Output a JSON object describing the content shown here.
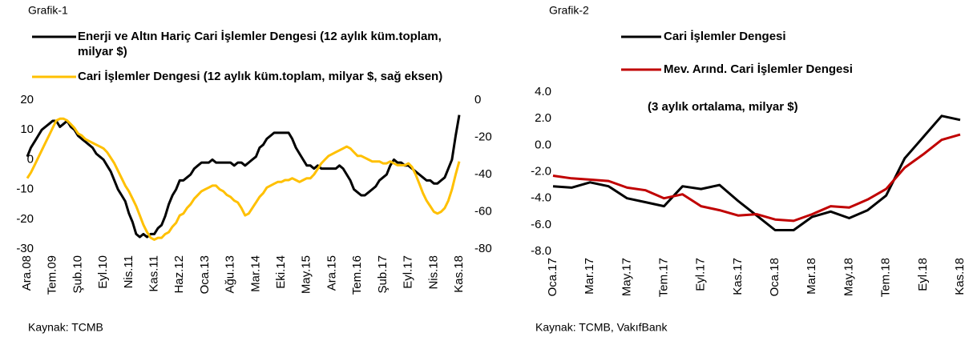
{
  "chart_data": [
    {
      "type": "line",
      "title": "Grafik-1",
      "source": "Kaynak: TCMB",
      "categories": [
        "Ara.08",
        null,
        null,
        null,
        null,
        null,
        null,
        "Tem.09",
        null,
        null,
        null,
        null,
        null,
        null,
        "Şub.10",
        null,
        null,
        null,
        null,
        null,
        null,
        "Eyl.10",
        null,
        null,
        null,
        null,
        null,
        null,
        "Nis.11",
        null,
        null,
        null,
        null,
        null,
        null,
        "Kas.11",
        null,
        null,
        null,
        null,
        null,
        null,
        "Haz.12",
        null,
        null,
        null,
        null,
        null,
        null,
        "Oca.13",
        null,
        null,
        null,
        null,
        null,
        null,
        "Ağu.13",
        null,
        null,
        null,
        null,
        null,
        null,
        "Mar.14",
        null,
        null,
        null,
        null,
        null,
        null,
        "Eki.14",
        null,
        null,
        null,
        null,
        null,
        null,
        "May.15",
        null,
        null,
        null,
        null,
        null,
        null,
        "Ara.15",
        null,
        null,
        null,
        null,
        null,
        null,
        "Tem.16",
        null,
        null,
        null,
        null,
        null,
        null,
        "Şub.17",
        null,
        null,
        null,
        null,
        null,
        null,
        "Eyl.17",
        null,
        null,
        null,
        null,
        null,
        null,
        "Nis.18",
        null,
        null,
        null,
        null,
        null,
        null,
        "Kas.18"
      ],
      "series": [
        {
          "name": "Enerji ve Altın Hariç Cari İşlemler Dengesi (12 aylık küm.toplam, milyar $)",
          "color": "#000000",
          "axis": "y",
          "values": [
            1,
            4,
            6,
            8,
            10,
            11,
            12,
            13,
            13,
            11,
            12,
            13,
            11,
            10,
            8,
            7,
            6,
            5,
            4,
            2,
            1,
            0,
            -2,
            -4,
            -7,
            -10,
            -12,
            -14,
            -18,
            -21,
            -25,
            -26,
            -25,
            -26,
            -25,
            -25,
            -23,
            -22,
            -19,
            -15,
            -12,
            -10,
            -7,
            -7,
            -6,
            -5,
            -3,
            -2,
            -1,
            -1,
            -1,
            0,
            -1,
            -1,
            -1,
            -1,
            -1,
            -2,
            -1,
            -1,
            -2,
            -1,
            0,
            1,
            4,
            5,
            7,
            8,
            9,
            9,
            9,
            9,
            9,
            7,
            4,
            2,
            0,
            -2,
            -2,
            -3,
            -2,
            -3,
            -3,
            -3,
            -3,
            -3,
            -2,
            -3,
            -5,
            -7,
            -10,
            -11,
            -12,
            -12,
            -11,
            -10,
            -9,
            -7,
            -6,
            -5,
            -2,
            0,
            -1,
            -1,
            -2,
            -2,
            -3,
            -4,
            -5,
            -6,
            -7,
            -7,
            -8,
            -8,
            -7,
            -6,
            -3,
            0,
            8,
            15
          ]
        },
        {
          "name": "Cari İşlemler Dengesi (12 aylık küm.toplam, milyar $, sağ eksen)",
          "color": "#ffc000",
          "axis": "y2",
          "values": [
            -42,
            -39,
            -35,
            -31,
            -27,
            -23,
            -19,
            -15,
            -11,
            -10,
            -10,
            -11,
            -13,
            -15,
            -18,
            -19,
            -21,
            -22,
            -23,
            -24,
            -25,
            -26,
            -28,
            -31,
            -34,
            -38,
            -42,
            -46,
            -49,
            -53,
            -57,
            -62,
            -67,
            -71,
            -74,
            -75,
            -74,
            -74,
            -72,
            -71,
            -68,
            -66,
            -62,
            -61,
            -58,
            -56,
            -53,
            -51,
            -49,
            -48,
            -47,
            -46,
            -46,
            -48,
            -49,
            -51,
            -52,
            -54,
            -55,
            -58,
            -62,
            -61,
            -58,
            -55,
            -52,
            -50,
            -47,
            -46,
            -45,
            -44,
            -44,
            -43,
            -43,
            -42,
            -43,
            -44,
            -43,
            -42,
            -42,
            -40,
            -37,
            -34,
            -32,
            -30,
            -29,
            -28,
            -27,
            -26,
            -25,
            -26,
            -28,
            -30,
            -30,
            -31,
            -32,
            -33,
            -33,
            -33,
            -34,
            -34,
            -33,
            -34,
            -35,
            -35,
            -35,
            -34,
            -36,
            -40,
            -45,
            -50,
            -54,
            -57,
            -60,
            -61,
            -60,
            -58,
            -54,
            -48,
            -40,
            -33
          ]
        }
      ],
      "ylim": [
        -30,
        20
      ],
      "yticks": [
        20,
        10,
        0,
        -10,
        -20,
        -30
      ],
      "y2lim": [
        -80,
        0
      ],
      "y2ticks": [
        0,
        -20,
        -40,
        -60,
        -80
      ]
    },
    {
      "type": "line",
      "title": "Grafik-2",
      "source": "Kaynak: TCMB, VakıfBank",
      "annotation": "(3 aylık ortalama, milyar $)",
      "categories": [
        "Oca.17",
        null,
        "Mar.17",
        null,
        "May.17",
        null,
        "Tem.17",
        null,
        "Eyl.17",
        null,
        "Kas.17",
        null,
        "Oca.18",
        null,
        "Mar.18",
        null,
        "May.18",
        null,
        "Tem.18",
        null,
        "Eyl.18",
        null,
        "Kas.18"
      ],
      "series": [
        {
          "name": "Cari İşlemler Dengesi",
          "color": "#000000",
          "values": [
            -3.1,
            -3.2,
            -2.8,
            -3.1,
            -4.0,
            -4.3,
            -4.6,
            -3.1,
            -3.3,
            -3.0,
            -4.2,
            -5.3,
            -6.4,
            -6.4,
            -5.4,
            -5.0,
            -5.5,
            -4.9,
            -3.8,
            -1.0,
            0.6,
            2.2,
            1.9
          ]
        },
        {
          "name": "Mev. Arınd. Cari İşlemler Dengesi",
          "color": "#c00000",
          "values": [
            -2.3,
            -2.5,
            -2.6,
            -2.7,
            -3.2,
            -3.4,
            -4.0,
            -3.7,
            -4.6,
            -4.9,
            -5.3,
            -5.2,
            -5.6,
            -5.7,
            -5.2,
            -4.6,
            -4.7,
            -4.1,
            -3.3,
            -1.7,
            -0.7,
            0.4,
            0.8
          ]
        }
      ],
      "ylim": [
        -8,
        4
      ],
      "yticks": [
        {
          "value": 4,
          "label": "4.0"
        },
        {
          "value": 2,
          "label": "2.0"
        },
        {
          "value": 0,
          "label": "0.0"
        },
        {
          "value": -2,
          "label": "-2.0"
        },
        {
          "value": -4,
          "label": "-4.0"
        },
        {
          "value": -6,
          "label": "-6.0"
        },
        {
          "value": -8,
          "label": "-8.0"
        }
      ]
    }
  ]
}
